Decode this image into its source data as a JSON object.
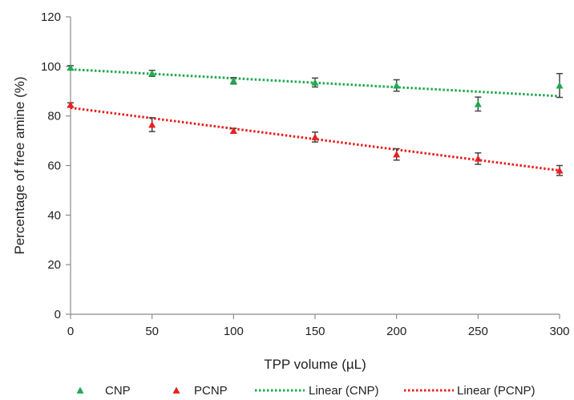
{
  "chart_data": {
    "type": "scatter",
    "title": "",
    "xlabel": "TPP volume (µL)",
    "ylabel": "Percentage of free amine (%)",
    "xlim": [
      0,
      300
    ],
    "ylim": [
      0,
      120
    ],
    "x_ticks": [
      0,
      50,
      100,
      150,
      200,
      250,
      300
    ],
    "y_ticks": [
      0,
      20,
      40,
      60,
      80,
      100,
      120
    ],
    "x_tick_labels": [
      "0",
      "50",
      "100",
      "150",
      "200",
      "250",
      "300"
    ],
    "y_tick_labels": [
      "0",
      "20",
      "40",
      "60",
      "80",
      "100",
      "120"
    ],
    "grid": false,
    "legend_position": "bottom",
    "series": [
      {
        "name": "CNP",
        "marker": "triangle",
        "color": "#1faa4e",
        "x": [
          0,
          50,
          100,
          150,
          200,
          250,
          300
        ],
        "y": [
          99.5,
          97.2,
          94.2,
          93.5,
          92.3,
          84.8,
          92.3
        ],
        "error": [
          0.8,
          1.2,
          1.3,
          1.8,
          2.3,
          2.8,
          4.8
        ]
      },
      {
        "name": "PCNP",
        "marker": "triangle",
        "color": "#e8201f",
        "x": [
          0,
          50,
          100,
          150,
          200,
          250,
          300
        ],
        "y": [
          84.5,
          76.5,
          74.0,
          71.5,
          64.5,
          62.8,
          58.0
        ],
        "error": [
          0.8,
          2.8,
          1.0,
          2.0,
          2.3,
          2.3,
          2.0
        ]
      }
    ],
    "trendlines": [
      {
        "name": "Linear (CNP)",
        "color": "#1faa4e",
        "x": [
          0,
          300
        ],
        "y": [
          98.8,
          88.0
        ]
      },
      {
        "name": "Linear (PCNP)",
        "color": "#e8201f",
        "x": [
          0,
          300
        ],
        "y": [
          83.3,
          58.0
        ]
      }
    ]
  }
}
